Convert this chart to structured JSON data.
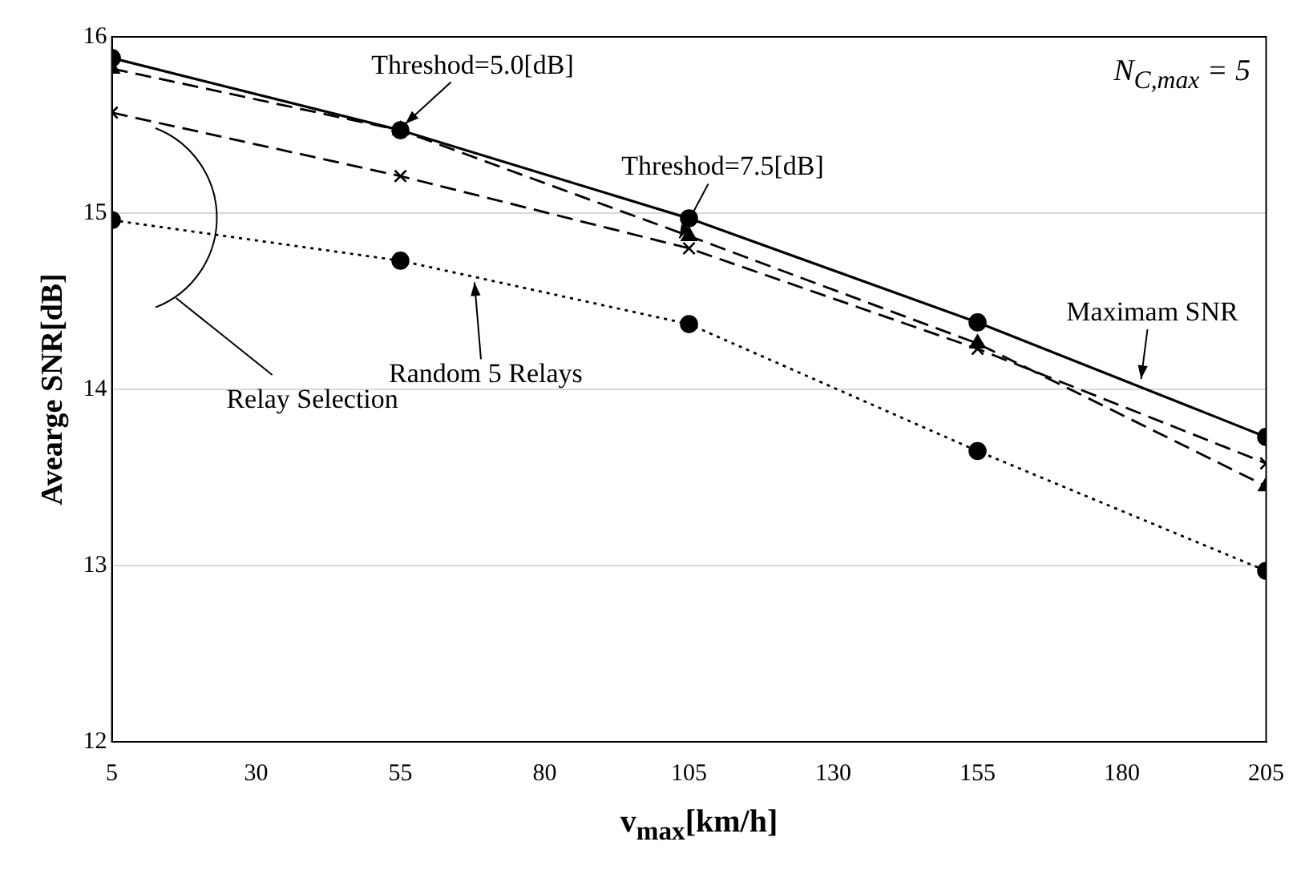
{
  "chart_data": {
    "type": "line",
    "xlabel": "v$_{max}$[km/h]",
    "ylabel": "Avearge SNR[dB]",
    "x": [
      5,
      55,
      105,
      155,
      205
    ],
    "series": [
      {
        "name": "Maximam SNR",
        "color": "#000000",
        "line_style": "solid",
        "marker": "circle",
        "values": [
          15.88,
          15.47,
          14.97,
          14.38,
          13.73
        ]
      },
      {
        "name": "Threshod=5.0[dB]",
        "color": "#000000",
        "line_style": "dashed",
        "marker": "triangle",
        "values": [
          15.82,
          15.47,
          14.87,
          14.26,
          13.45
        ]
      },
      {
        "name": "Threshod=7.5[dB]",
        "color": "#000000",
        "line_style": "dashed",
        "marker": "cross",
        "values": [
          15.57,
          15.21,
          14.8,
          14.23,
          13.58
        ]
      },
      {
        "name": "Random 5 Relays",
        "color": "#000000",
        "line_style": "dotted",
        "marker": "circle",
        "values": [
          14.96,
          14.73,
          14.37,
          13.65,
          12.97
        ]
      }
    ],
    "annotations": [
      "Relay Selection",
      "N$_{C,max}$ = 5"
    ],
    "xlim": [
      5,
      205
    ],
    "xticks": [
      5,
      30,
      55,
      80,
      105,
      130,
      155,
      180,
      205
    ],
    "ylim": [
      12,
      16
    ],
    "yticks": [
      12,
      13,
      14,
      15,
      16
    ],
    "grid": "y",
    "legend": false
  }
}
